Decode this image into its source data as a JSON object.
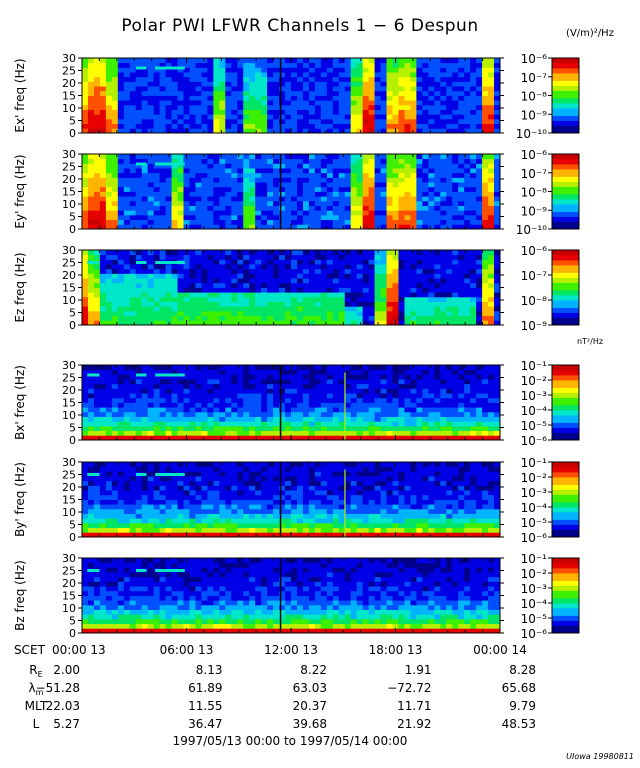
{
  "title": "Polar PWI LFWR Channels 1 − 6 Despun",
  "units_electric": "(V/m)²/Hz",
  "units_magnetic": "nT²/Hz",
  "credit": "UIowa 19980811",
  "date_range": "1997/05/13 00:00 to 1997/05/14 00:00",
  "colors": {
    "spectrum": [
      "#00008c",
      "#0000e6",
      "#0050ff",
      "#00b4ff",
      "#00e6c8",
      "#00e664",
      "#3cf000",
      "#b4f000",
      "#ffff00",
      "#ffb400",
      "#ff5000",
      "#e60000",
      "#c80000"
    ]
  },
  "chart_data": [
    {
      "type": "heatmap",
      "ylabel": "Ex' freq (Hz)",
      "yticks": [
        "0",
        "5",
        "10",
        "15",
        "20",
        "25",
        "30"
      ],
      "ylim": [
        0,
        30
      ],
      "xlim_hours": [
        0,
        24
      ],
      "colorbar": {
        "ticks": [
          "10⁻¹⁰",
          "10⁻⁹",
          "10⁻⁸",
          "10⁻⁷",
          "10⁻⁶"
        ],
        "range": [
          -10,
          -6
        ]
      },
      "noise_level": 0.1,
      "bursts": [
        {
          "t": [
            0.0,
            0.4
          ],
          "level": 0.85
        },
        {
          "t": [
            0.4,
            1.2
          ],
          "level": 0.95
        },
        {
          "t": [
            1.7,
            1.9
          ],
          "level": 0.8
        },
        {
          "t": [
            7.9,
            8.0
          ],
          "level": 0.65
        },
        {
          "t": [
            9.5,
            9.6
          ],
          "level": 0.55
        },
        {
          "t": [
            10.3,
            10.4
          ],
          "level": 0.55
        },
        {
          "t": [
            15.6,
            15.9
          ],
          "level": 0.7
        },
        {
          "t": [
            16.3,
            16.7
          ],
          "level": 0.95
        },
        {
          "t": [
            17.7,
            18.1
          ],
          "level": 0.8
        },
        {
          "t": [
            18.3,
            18.9
          ],
          "level": 0.85
        },
        {
          "t": [
            23.0,
            23.5
          ],
          "level": 0.9
        }
      ],
      "markers": [
        [
          3.1,
          3.7
        ],
        [
          4.2,
          5.9
        ]
      ],
      "marker_freq": 26,
      "gap_hours": 11.4
    },
    {
      "type": "heatmap",
      "ylabel": "Ey' freq (Hz)",
      "yticks": [
        "0",
        "5",
        "10",
        "15",
        "20",
        "25",
        "30"
      ],
      "ylim": [
        0,
        30
      ],
      "xlim_hours": [
        0,
        24
      ],
      "colorbar": {
        "ticks": [
          "10⁻¹⁰",
          "10⁻⁹",
          "10⁻⁸",
          "10⁻⁷",
          "10⁻⁶"
        ],
        "range": [
          -10,
          -6
        ]
      },
      "noise_level": 0.12,
      "bursts": [
        {
          "t": [
            0.0,
            0.4
          ],
          "level": 0.85
        },
        {
          "t": [
            0.4,
            1.2
          ],
          "level": 0.95
        },
        {
          "t": [
            1.7,
            1.9
          ],
          "level": 0.8
        },
        {
          "t": [
            5.4,
            5.6
          ],
          "level": 0.7
        },
        {
          "t": [
            9.5,
            9.6
          ],
          "level": 0.55
        },
        {
          "t": [
            15.6,
            15.9
          ],
          "level": 0.7
        },
        {
          "t": [
            16.3,
            16.7
          ],
          "level": 0.95
        },
        {
          "t": [
            17.7,
            18.1
          ],
          "level": 0.8
        },
        {
          "t": [
            18.3,
            18.9
          ],
          "level": 0.85
        },
        {
          "t": [
            23.0,
            23.5
          ],
          "level": 0.9
        }
      ],
      "markers": [
        [
          3.1,
          3.7
        ],
        [
          4.2,
          5.9
        ]
      ],
      "marker_freq": 26,
      "gap_hours": 11.4
    },
    {
      "type": "heatmap",
      "ylabel": "Ez freq (Hz)",
      "yticks": [
        "0",
        "5",
        "10",
        "15",
        "20",
        "25",
        "30"
      ],
      "ylim": [
        0,
        30
      ],
      "xlim_hours": [
        0,
        24
      ],
      "colorbar": {
        "ticks": [
          "10⁻⁹",
          "10⁻⁸",
          "10⁻⁷",
          "10⁻⁶"
        ],
        "range": [
          -9,
          -6
        ]
      },
      "noise_level": 0.05,
      "bursts": [
        {
          "t": [
            0.0,
            0.3
          ],
          "level": 0.9
        },
        {
          "t": [
            0.3,
            0.8
          ],
          "level": 0.75
        },
        {
          "t": [
            17.1,
            17.2
          ],
          "level": 0.6
        },
        {
          "t": [
            17.7,
            18.0
          ],
          "level": 0.95
        },
        {
          "t": [
            23.2,
            23.6
          ],
          "level": 0.8
        }
      ],
      "bands": [
        {
          "t": [
            1.0,
            5.5
          ],
          "f": [
            0,
            20
          ],
          "level": 0.45
        },
        {
          "t": [
            5.5,
            15.0
          ],
          "f": [
            0,
            13
          ],
          "level": 0.5
        },
        {
          "t": [
            15.0,
            16.2
          ],
          "f": [
            0,
            8
          ],
          "level": 0.4
        },
        {
          "t": [
            18.5,
            22.5
          ],
          "f": [
            0,
            12
          ],
          "level": 0.45
        }
      ],
      "markers": [
        [
          0.3,
          1.0
        ],
        [
          3.1,
          3.7
        ],
        [
          4.2,
          5.9
        ]
      ],
      "marker_freq": 25,
      "gap_hours": null
    },
    {
      "type": "heatmap",
      "ylabel": "Bx' freq (Hz)",
      "yticks": [
        "0",
        "5",
        "10",
        "15",
        "20",
        "25",
        "30"
      ],
      "ylim": [
        0,
        30
      ],
      "xlim_hours": [
        0,
        24
      ],
      "colorbar": {
        "ticks": [
          "10⁻⁶",
          "10⁻⁵",
          "10⁻⁴",
          "10⁻³",
          "10⁻²",
          "10⁻¹"
        ],
        "range": [
          -6,
          -1
        ]
      },
      "magnetic": true,
      "markers": [
        [
          0.3,
          1.0
        ],
        [
          3.1,
          3.7
        ],
        [
          4.2,
          5.9
        ]
      ],
      "marker_freq": 26,
      "gap_hours": 11.4,
      "spike_hours": 15.1
    },
    {
      "type": "heatmap",
      "ylabel": "By' freq (Hz)",
      "yticks": [
        "0",
        "5",
        "10",
        "15",
        "20",
        "25",
        "30"
      ],
      "ylim": [
        0,
        30
      ],
      "xlim_hours": [
        0,
        24
      ],
      "colorbar": {
        "ticks": [
          "10⁻⁶",
          "10⁻⁵",
          "10⁻⁴",
          "10⁻³",
          "10⁻²",
          "10⁻¹"
        ],
        "range": [
          -6,
          -1
        ]
      },
      "magnetic": true,
      "markers": [
        [
          0.3,
          1.0
        ],
        [
          3.1,
          3.7
        ],
        [
          4.2,
          5.9
        ]
      ],
      "marker_freq": 25,
      "gap_hours": 11.4,
      "spike_hours": 15.1
    },
    {
      "type": "heatmap",
      "ylabel": "Bz freq (Hz)",
      "yticks": [
        "0",
        "5",
        "10",
        "15",
        "20",
        "25",
        "30"
      ],
      "ylim": [
        0,
        30
      ],
      "xlim_hours": [
        0,
        24
      ],
      "colorbar": {
        "ticks": [
          "10⁻⁶",
          "10⁻⁵",
          "10⁻⁴",
          "10⁻³",
          "10⁻²",
          "10⁻¹"
        ],
        "range": [
          -6,
          -1
        ]
      },
      "magnetic": true,
      "markers": [
        [
          0.3,
          1.0
        ],
        [
          3.1,
          3.7
        ],
        [
          4.2,
          5.9
        ]
      ],
      "marker_freq": 25,
      "gap_hours": 11.4,
      "spike_hours": null
    }
  ],
  "x_axis": {
    "label": "SCET",
    "ticks": [
      {
        "hour": 0,
        "label": "00:00 13"
      },
      {
        "hour": 6,
        "label": "06:00 13"
      },
      {
        "hour": 12,
        "label": "12:00 13"
      },
      {
        "hour": 18,
        "label": "18:00 13"
      },
      {
        "hour": 24,
        "label": "00:00 14"
      }
    ]
  },
  "ephemeris": [
    {
      "label": "R",
      "sub": "E",
      "values": [
        "2.00",
        "8.13",
        "8.22",
        "1.91",
        "8.28"
      ]
    },
    {
      "label": "λ",
      "sub": "m",
      "values": [
        "−51.28",
        "61.89",
        "63.03",
        "−72.72",
        "65.68"
      ]
    },
    {
      "label": "MLT",
      "sub": "",
      "values": [
        "22.03",
        "11.55",
        "20.37",
        "11.71",
        "9.79"
      ]
    },
    {
      "label": "L",
      "sub": "",
      "values": [
        "5.27",
        "36.47",
        "39.68",
        "21.92",
        "48.53"
      ]
    }
  ]
}
